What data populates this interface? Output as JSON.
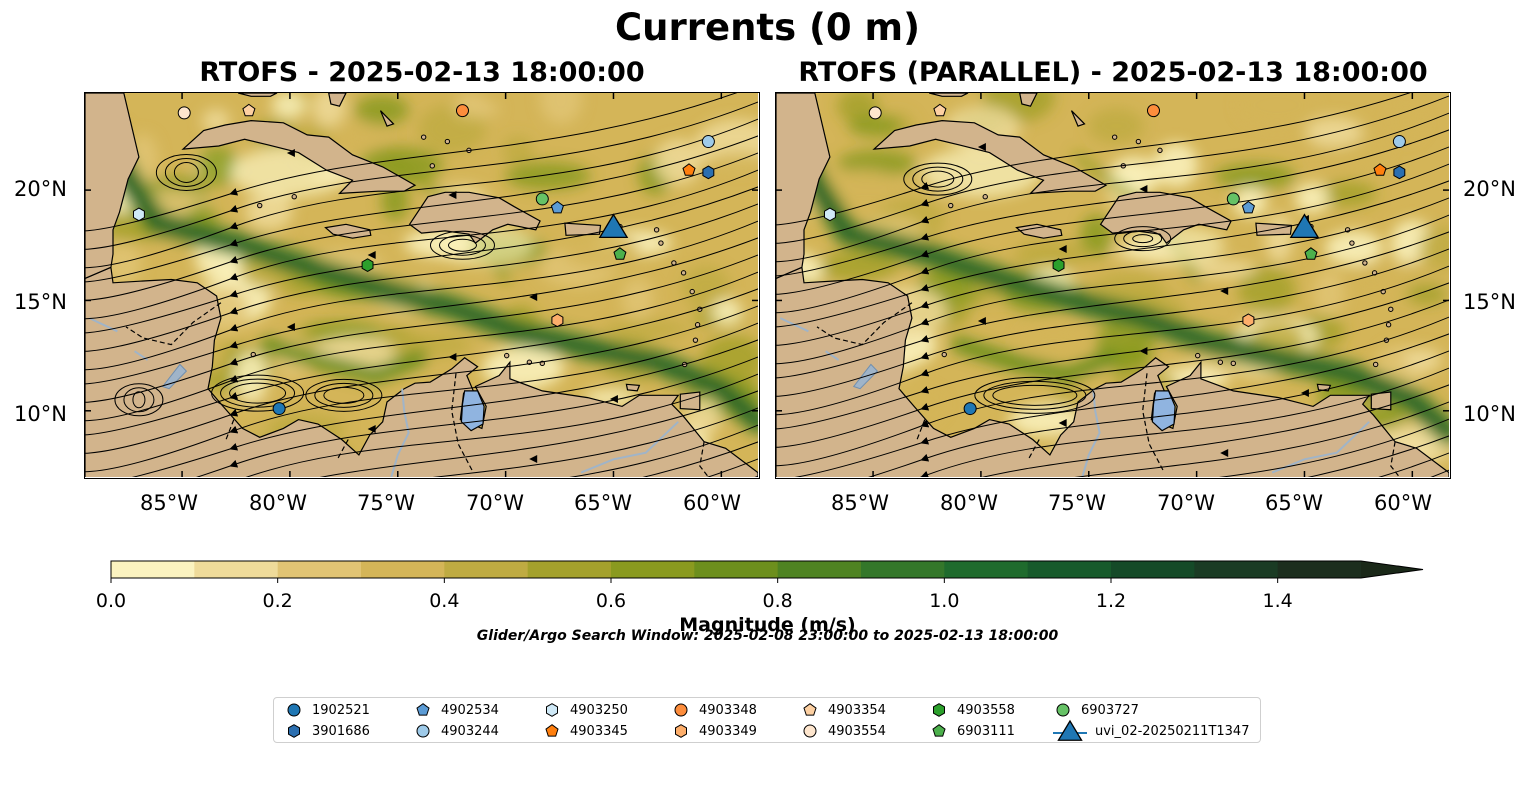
{
  "figure": {
    "suptitle": "Currents (0 m)",
    "left_title": "RTOFS - 2025-02-13 18:00:00",
    "right_title": "RTOFS (PARALLEL) - 2025-02-13 18:00:00",
    "search_window": "Glider/Argo Search Window: 2025-02-08 23:00:00 to 2025-02-13 18:00:00"
  },
  "axes": {
    "lon_range": [
      -89.5,
      -58.3
    ],
    "lat_range": [
      7.0,
      24.4
    ],
    "lon_ticks": [
      -85,
      -80,
      -75,
      -70,
      -65,
      -60
    ],
    "lon_tick_labels": [
      "85°W",
      "80°W",
      "75°W",
      "70°W",
      "65°W",
      "60°W"
    ],
    "lat_ticks": [
      10,
      15,
      20
    ],
    "lat_tick_labels": [
      "10°N",
      "15°N",
      "20°N"
    ]
  },
  "colorbar": {
    "label": "Magnitude (m/s)",
    "range": [
      0.0,
      1.5
    ],
    "extend": "max",
    "tick_values": [
      0.0,
      0.2,
      0.4,
      0.6,
      0.8,
      1.0,
      1.2,
      1.4
    ],
    "tick_labels": [
      "0.0",
      "0.2",
      "0.4",
      "0.6",
      "0.8",
      "1.0",
      "1.2",
      "1.4"
    ],
    "colors": [
      "#fbf3c0",
      "#efdb9a",
      "#e1c474",
      "#d4b558",
      "#bfab42",
      "#a4a12c",
      "#8a9a1f",
      "#6d8f1d",
      "#4f8322",
      "#34772a",
      "#1f6b2d",
      "#175a2b",
      "#154a28",
      "#1a3b24",
      "#1c2e1e"
    ],
    "extend_color": "#1a2818"
  },
  "colors": {
    "land": "#d2b48c",
    "water_body": "#90b4e0",
    "river": "#a0b4c8",
    "coast": "#000000"
  },
  "markers": [
    {
      "id": "1902521",
      "shape": "circle",
      "color": "#1f77b4",
      "left": [
        -80.5,
        10.1
      ],
      "right": [
        -80.5,
        10.1
      ]
    },
    {
      "id": "3901686",
      "shape": "hexagon",
      "color": "#2b6fb0",
      "left": [
        -60.6,
        20.8
      ],
      "right": [
        -60.6,
        20.8
      ]
    },
    {
      "id": "4902534",
      "shape": "pentagon",
      "color": "#5b9bd5",
      "left": [
        -67.6,
        19.2
      ],
      "right": [
        -67.6,
        19.2
      ]
    },
    {
      "id": "4903244",
      "shape": "circle",
      "color": "#9ecae9",
      "left": [
        -60.6,
        22.2
      ],
      "right": [
        -60.6,
        22.2
      ]
    },
    {
      "id": "4903250",
      "shape": "hexagon",
      "color": "#cfe9f7",
      "left": [
        -87.0,
        18.9
      ],
      "right": [
        -87.0,
        18.9
      ]
    },
    {
      "id": "4903345",
      "shape": "pentagon",
      "color": "#ff7f0e",
      "left": [
        -61.5,
        20.9
      ],
      "right": [
        -61.5,
        20.9
      ]
    },
    {
      "id": "4903348",
      "shape": "circle",
      "color": "#fd8d3c",
      "left": [
        -72.0,
        23.6
      ],
      "right": [
        -72.0,
        23.6
      ]
    },
    {
      "id": "4903349",
      "shape": "hexagon",
      "color": "#fdae6b",
      "left": [
        -67.6,
        14.1
      ],
      "right": [
        -67.6,
        14.1
      ]
    },
    {
      "id": "4903354",
      "shape": "pentagon",
      "color": "#fdd0a2",
      "left": [
        -81.9,
        23.6
      ],
      "right": [
        -81.9,
        23.6
      ]
    },
    {
      "id": "4903554",
      "shape": "circle",
      "color": "#fee6ce",
      "left": [
        -84.9,
        23.5
      ],
      "right": [
        -84.9,
        23.5
      ]
    },
    {
      "id": "4903558",
      "shape": "hexagon",
      "color": "#2ca02c",
      "left": [
        -76.4,
        16.6
      ],
      "right": [
        -76.4,
        16.6
      ]
    },
    {
      "id": "6903111",
      "shape": "pentagon",
      "color": "#4cb04c",
      "left": [
        -64.7,
        17.1
      ],
      "right": [
        -64.7,
        17.1
      ]
    },
    {
      "id": "6903727",
      "shape": "circle",
      "color": "#66c266",
      "left": [
        -68.3,
        19.6
      ],
      "right": [
        -68.3,
        19.6
      ]
    },
    {
      "id": "uvi_02-20250211T1347",
      "shape": "triangle",
      "color": "#1f77b4",
      "left": [
        -65.0,
        18.3
      ],
      "right": [
        -65.0,
        18.3
      ]
    }
  ],
  "legend": {
    "columns": [
      [
        "1902521",
        "3901686"
      ],
      [
        "4902534",
        "4903244"
      ],
      [
        "4903250",
        "4903345"
      ],
      [
        "4903348",
        "4903349"
      ],
      [
        "4903354",
        "4903554"
      ],
      [
        "4903558",
        "6903111"
      ],
      [
        "6903727",
        "uvi_02-20250211T1347"
      ]
    ]
  }
}
